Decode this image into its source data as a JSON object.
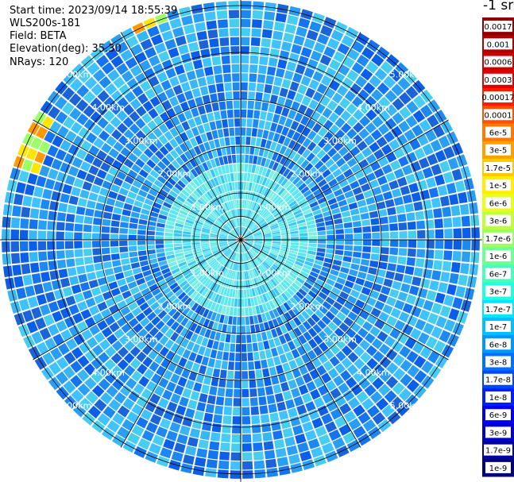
{
  "header": {
    "start_time": "Start time: 2023/09/14 18:55:39",
    "instrument": "WLS200s-181",
    "field": "Field: BETA",
    "elevation": "Elevation(deg): 35.30",
    "nrays": "NRays: 120"
  },
  "colorbar": {
    "title": "-1 sr",
    "labels": [
      "0.0017",
      "0.001",
      "0.0006",
      "0.0003",
      "0.00017",
      "0.0001",
      "6e-5",
      "3e-5",
      "1.7e-5",
      "1e-5",
      "6e-6",
      "3e-6",
      "1.7e-6",
      "1e-6",
      "6e-7",
      "3e-7",
      "1.7e-7",
      "1e-7",
      "6e-8",
      "3e-8",
      "1.7e-8",
      "1e-8",
      "6e-9",
      "3e-9",
      "1.7e-9",
      "1e-9"
    ],
    "colors": [
      "#8c0000",
      "#b00000",
      "#c80000",
      "#e00000",
      "#ff1a00",
      "#ff5000",
      "#ff7800",
      "#ffa000",
      "#ffc800",
      "#ffee00",
      "#e8ff1a",
      "#c0ff40",
      "#98ff68",
      "#70ff90",
      "#48ffb8",
      "#20ffe0",
      "#00e8ff",
      "#00c0ff",
      "#0098ff",
      "#0070ff",
      "#0048ff",
      "#0020ff",
      "#0000f0",
      "#0000c8",
      "#0000a0",
      "#000078"
    ]
  },
  "chart_data": {
    "type": "heatmap",
    "projection": "polar PPI",
    "rings": [
      "1.00km",
      "2.00km",
      "3.00km",
      "4.00km",
      "5.00km"
    ],
    "spokes_deg": [
      0,
      30,
      60,
      90,
      120,
      150,
      180,
      210,
      240,
      270,
      300,
      330
    ],
    "nrays": 120,
    "max_range_km": 5.1,
    "elevation_deg": 35.3,
    "field": "BETA",
    "hotspots": [
      {
        "azimuth_deg": 337,
        "range_km": 5.0,
        "value": "2e-5"
      },
      {
        "azimuth_deg": 292,
        "range_km": 4.7,
        "value": "1e-5"
      },
      {
        "azimuth_deg": 297,
        "range_km": 4.9,
        "value": "3e-6"
      }
    ]
  }
}
